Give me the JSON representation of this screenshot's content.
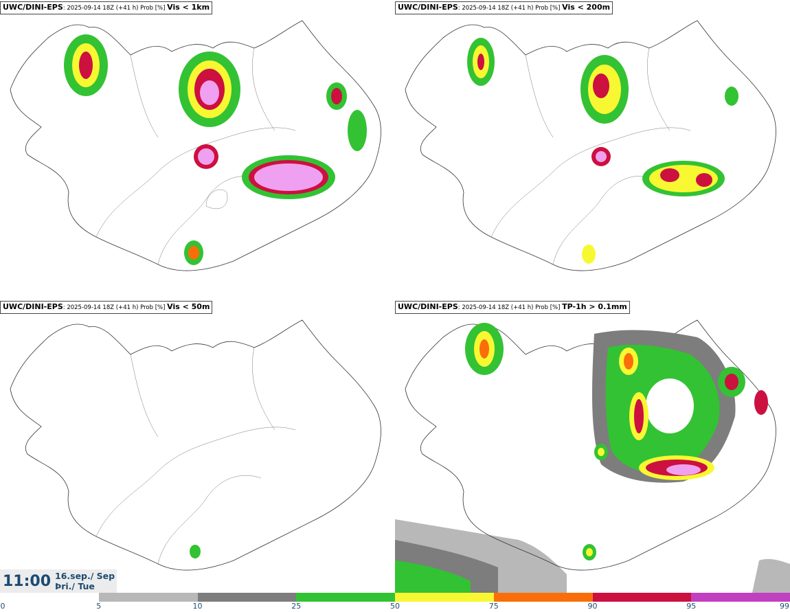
{
  "panels": [
    {
      "model": "UWC/DINI-EPS",
      "meta": ": 2025-09-14 18Z (+41 h) Prob [%] ",
      "variable": "Vis < 1km"
    },
    {
      "model": "UWC/DINI-EPS",
      "meta": ": 2025-09-14 18Z (+41 h) Prob [%] ",
      "variable": "Vis < 200m"
    },
    {
      "model": "UWC/DINI-EPS",
      "meta": ": 2025-09-14 18Z (+41 h) Prob [%] ",
      "variable": "Vis < 50m"
    },
    {
      "model": "UWC/DINI-EPS",
      "meta": ": 2025-09-14 18Z (+41 h) Prob [%] ",
      "variable": "TP-1h > 0.1mm"
    }
  ],
  "valid_time": {
    "time": "11:00",
    "date_line1": "16.sep./ Sep",
    "date_line2": "Þri./ Tue"
  },
  "colorbar": {
    "ticks": [
      "0",
      "5",
      "10",
      "25",
      "50",
      "75",
      "90",
      "95",
      "99"
    ],
    "colors": [
      "#ffffff",
      "#b8b8b8",
      "#7d7d7d",
      "#33c233",
      "#f8f832",
      "#fa6e0a",
      "#cc1040",
      "#c040c0",
      "#f0a0f0"
    ]
  }
}
